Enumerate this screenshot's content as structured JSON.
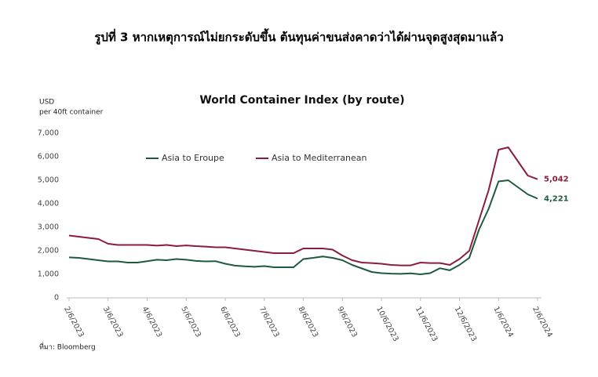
{
  "page_title": "รูปที่ 3 หากเหตุการณ์ไม่ยกระดับขึ้น ต้นทุนค่าขนส่งคาดว่าได้ผ่านจุดสูงสุดมาแล้ว",
  "source": "ที่มา: Bloomberg",
  "chart_data": {
    "type": "line",
    "title": "World Container Index (by route)",
    "y_label": [
      "USD",
      "per 40ft container"
    ],
    "categories": [
      "2/6/2023",
      null,
      null,
      null,
      "3/6/2023",
      null,
      null,
      null,
      "4/6/2023",
      null,
      null,
      null,
      "5/6/2023",
      null,
      null,
      null,
      "6/6/2023",
      null,
      null,
      null,
      "7/6/2023",
      null,
      null,
      null,
      "8/6/2023",
      null,
      null,
      null,
      "9/6/2023",
      null,
      null,
      null,
      "10/6/2023",
      null,
      null,
      null,
      "11/6/2023",
      null,
      null,
      null,
      "12/6/2023",
      null,
      null,
      null,
      "1/6/2024",
      null,
      null,
      null,
      "2/6/2024"
    ],
    "series": [
      {
        "name": "Asia to Eroupe",
        "color": "#1e5a3c",
        "values": [
          1720,
          1700,
          1650,
          1600,
          1550,
          1550,
          1500,
          1500,
          1560,
          1620,
          1600,
          1650,
          1620,
          1570,
          1550,
          1560,
          1450,
          1370,
          1340,
          1320,
          1350,
          1300,
          1300,
          1300,
          1650,
          1700,
          1760,
          1700,
          1600,
          1400,
          1250,
          1100,
          1050,
          1030,
          1020,
          1040,
          1000,
          1050,
          1260,
          1170,
          1400,
          1700,
          2900,
          3800,
          4950,
          5000,
          4700,
          4400,
          4221
        ],
        "value_labels": [
          null,
          null,
          null,
          null,
          null,
          null,
          null,
          null,
          null,
          null,
          null,
          null,
          null,
          null,
          null,
          null,
          null,
          null,
          null,
          null,
          null,
          null,
          null,
          null,
          null,
          null,
          null,
          null,
          null,
          null,
          null,
          null,
          null,
          null,
          null,
          null,
          null,
          null,
          null,
          null,
          null,
          null,
          null,
          null,
          null,
          null,
          null,
          null,
          "4,221"
        ]
      },
      {
        "name": "Asia to Mediterranean",
        "color": "#8c1c3c",
        "values": [
          2650,
          2600,
          2550,
          2500,
          2300,
          2250,
          2250,
          2250,
          2250,
          2220,
          2250,
          2200,
          2230,
          2200,
          2180,
          2150,
          2150,
          2100,
          2050,
          2000,
          1950,
          1900,
          1900,
          1900,
          2100,
          2100,
          2100,
          2050,
          1800,
          1600,
          1500,
          1480,
          1450,
          1400,
          1380,
          1380,
          1500,
          1480,
          1480,
          1400,
          1650,
          2000,
          3300,
          4600,
          6300,
          6400,
          5800,
          5200,
          5042
        ],
        "value_labels": [
          null,
          null,
          null,
          null,
          null,
          null,
          null,
          null,
          null,
          null,
          null,
          null,
          null,
          null,
          null,
          null,
          null,
          null,
          null,
          null,
          null,
          null,
          null,
          null,
          null,
          null,
          null,
          null,
          null,
          null,
          null,
          null,
          null,
          null,
          null,
          null,
          null,
          null,
          null,
          null,
          null,
          null,
          null,
          null,
          null,
          null,
          null,
          null,
          "5,042"
        ]
      }
    ],
    "ylim": [
      0,
      7000
    ],
    "yticks": [
      0,
      {
        "value": 1000,
        "label": "1,000"
      },
      {
        "value": 2000,
        "label": "2,000"
      },
      {
        "value": 3000,
        "label": "3,000"
      },
      {
        "value": 4000,
        "label": "4,000"
      },
      {
        "value": 5000,
        "label": "5,000"
      },
      {
        "value": 6000,
        "label": "6,000"
      },
      {
        "value": 7000,
        "label": "7,000"
      }
    ],
    "grid": false,
    "legend": "top-left"
  }
}
